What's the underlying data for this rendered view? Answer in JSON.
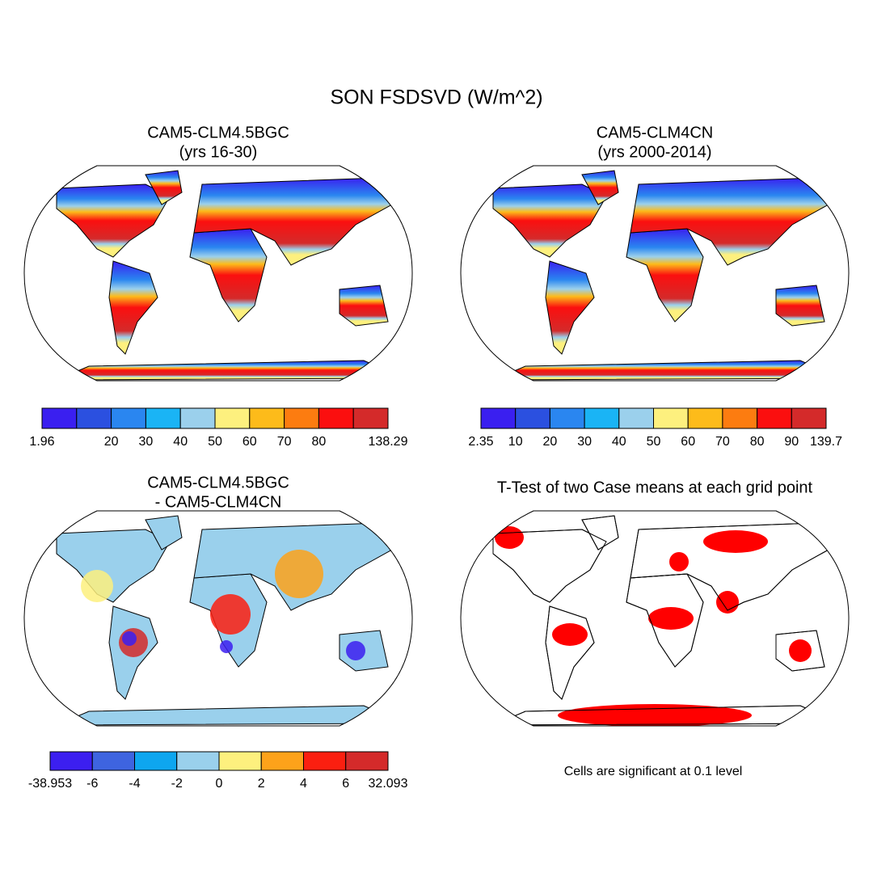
{
  "title": "SON FSDSVD (W/m^2)",
  "panels": [
    {
      "title": [
        "CAM5-CLM4.5BGC",
        "(yrs 16-30)"
      ],
      "colorbar": {
        "colors": [
          "#3a1ff0",
          "#2b50e0",
          "#2a86f0",
          "#1ab4f5",
          "#9bd0ec",
          "#fdf07e",
          "#fdbb1a",
          "#fc7c10",
          "#fb0f0f",
          "#d42a2a"
        ],
        "labels": [
          "1.96",
          null,
          "20",
          "30",
          "40",
          "50",
          "60",
          "70",
          "80",
          null,
          "138.29"
        ]
      }
    },
    {
      "title": [
        "CAM5-CLM4CN",
        "(yrs 2000-2014)"
      ],
      "colorbar": {
        "colors": [
          "#3a1ff0",
          "#2b50e0",
          "#2a86f0",
          "#1ab4f5",
          "#9bd0ec",
          "#fdf07e",
          "#fdbb1a",
          "#fc7c10",
          "#fb0f0f",
          "#d42a2a"
        ],
        "labels": [
          "2.35",
          "10",
          "20",
          "30",
          "40",
          "50",
          "60",
          "70",
          "80",
          "90",
          "139.7"
        ]
      }
    },
    {
      "title": [
        "CAM5-CLM4.5BGC",
        "- CAM5-CLM4CN"
      ],
      "colorbar": {
        "colors": [
          "#3c1ff0",
          "#3e64e0",
          "#0ea6ef",
          "#9ad0ec",
          "#fdf07e",
          "#fda21a",
          "#fb1f10",
          "#d42a2a"
        ],
        "labels": [
          "-38.953",
          "-6",
          "-4",
          "-2",
          "0",
          "2",
          "4",
          "6",
          "32.093"
        ]
      }
    },
    {
      "title": [
        "T-Test of two Case means at each grid point"
      ]
    }
  ],
  "note": "Cells are significant at 0.1 level"
}
